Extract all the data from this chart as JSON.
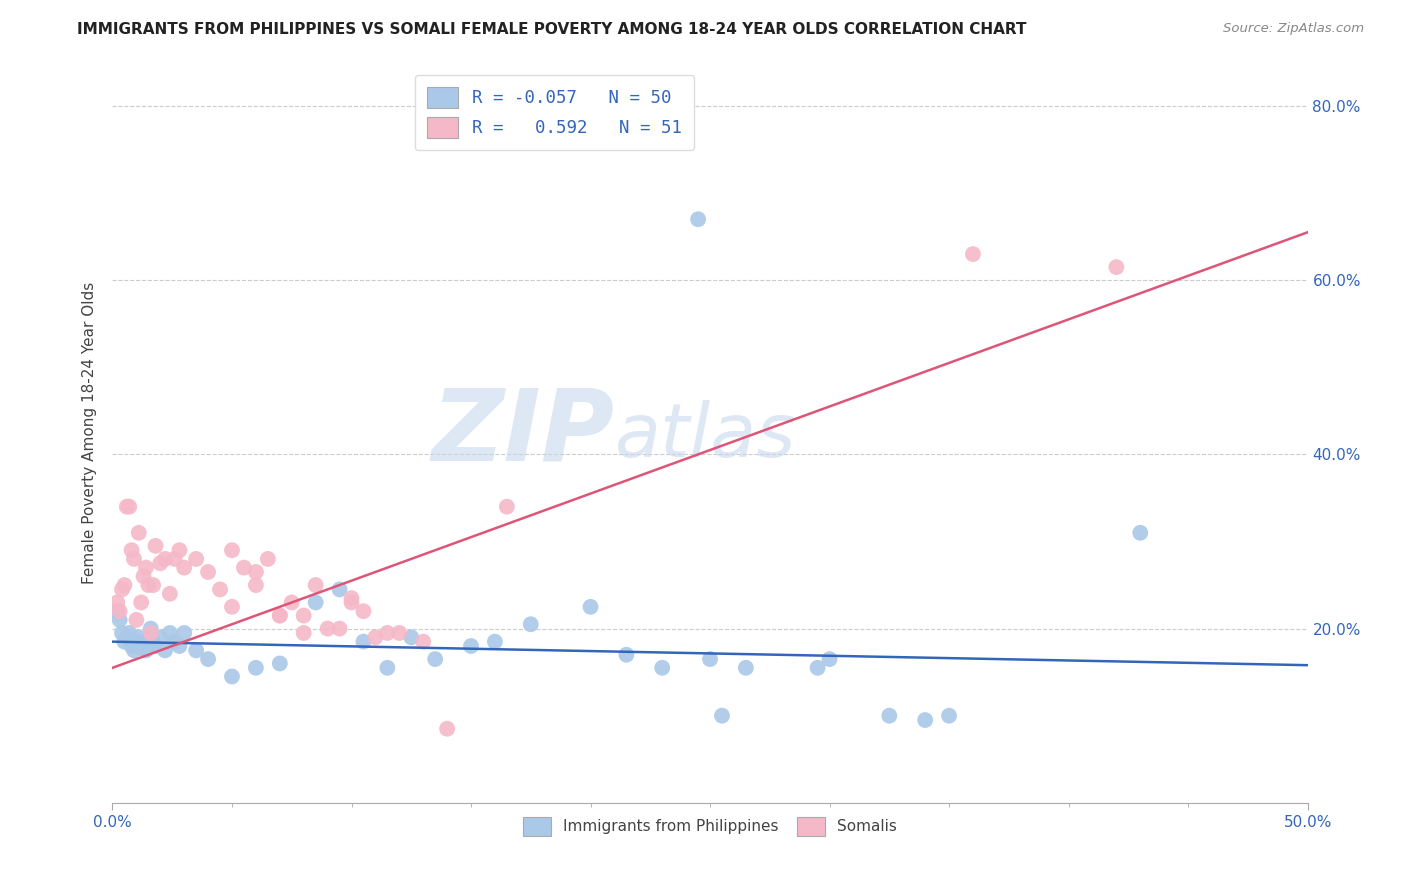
{
  "title": "IMMIGRANTS FROM PHILIPPINES VS SOMALI FEMALE POVERTY AMONG 18-24 YEAR OLDS CORRELATION CHART",
  "source": "Source: ZipAtlas.com",
  "ylabel": "Female Poverty Among 18-24 Year Olds",
  "xlim": [
    0.0,
    0.5
  ],
  "ylim": [
    0.0,
    0.85
  ],
  "yticks": [
    0.0,
    0.2,
    0.4,
    0.6,
    0.8
  ],
  "blue_R": -0.057,
  "blue_N": 50,
  "pink_R": 0.592,
  "pink_N": 51,
  "blue_color": "#aac8e8",
  "pink_color": "#f5b8c8",
  "blue_line_color": "#3366bb",
  "pink_line_color": "#dd5577",
  "legend_label_blue": "Immigrants from Philippines",
  "legend_label_pink": "Somalis",
  "watermark_zip": "ZIP",
  "watermark_atlas": "atlas",
  "background_color": "#ffffff",
  "blue_line_x0": 0.0,
  "blue_line_y0": 0.185,
  "blue_line_x1": 0.5,
  "blue_line_y1": 0.158,
  "pink_line_x0": 0.0,
  "pink_line_y0": 0.155,
  "pink_line_x1": 0.5,
  "pink_line_y1": 0.655,
  "blue_x": [
    0.002,
    0.003,
    0.004,
    0.005,
    0.006,
    0.007,
    0.008,
    0.009,
    0.01,
    0.011,
    0.012,
    0.013,
    0.014,
    0.015,
    0.016,
    0.017,
    0.018,
    0.02,
    0.022,
    0.024,
    0.026,
    0.028,
    0.03,
    0.035,
    0.04,
    0.05,
    0.06,
    0.07,
    0.085,
    0.095,
    0.105,
    0.115,
    0.125,
    0.135,
    0.15,
    0.16,
    0.175,
    0.2,
    0.215,
    0.23,
    0.25,
    0.265,
    0.295,
    0.3,
    0.325,
    0.34,
    0.245,
    0.255,
    0.35,
    0.43
  ],
  "blue_y": [
    0.22,
    0.21,
    0.195,
    0.185,
    0.19,
    0.195,
    0.18,
    0.175,
    0.185,
    0.19,
    0.178,
    0.182,
    0.175,
    0.188,
    0.2,
    0.185,
    0.18,
    0.19,
    0.175,
    0.195,
    0.185,
    0.18,
    0.195,
    0.175,
    0.165,
    0.145,
    0.155,
    0.16,
    0.23,
    0.245,
    0.185,
    0.155,
    0.19,
    0.165,
    0.18,
    0.185,
    0.205,
    0.225,
    0.17,
    0.155,
    0.165,
    0.155,
    0.155,
    0.165,
    0.1,
    0.095,
    0.67,
    0.1,
    0.1,
    0.31
  ],
  "pink_x": [
    0.002,
    0.003,
    0.004,
    0.005,
    0.006,
    0.007,
    0.008,
    0.009,
    0.01,
    0.011,
    0.012,
    0.013,
    0.014,
    0.015,
    0.016,
    0.017,
    0.018,
    0.02,
    0.022,
    0.024,
    0.026,
    0.028,
    0.03,
    0.035,
    0.04,
    0.045,
    0.05,
    0.055,
    0.06,
    0.065,
    0.07,
    0.075,
    0.08,
    0.085,
    0.09,
    0.095,
    0.1,
    0.105,
    0.11,
    0.115,
    0.12,
    0.13,
    0.14,
    0.05,
    0.06,
    0.07,
    0.08,
    0.1,
    0.36,
    0.42,
    0.165
  ],
  "pink_y": [
    0.23,
    0.22,
    0.245,
    0.25,
    0.34,
    0.34,
    0.29,
    0.28,
    0.21,
    0.31,
    0.23,
    0.26,
    0.27,
    0.25,
    0.195,
    0.25,
    0.295,
    0.275,
    0.28,
    0.24,
    0.28,
    0.29,
    0.27,
    0.28,
    0.265,
    0.245,
    0.225,
    0.27,
    0.25,
    0.28,
    0.215,
    0.23,
    0.215,
    0.25,
    0.2,
    0.2,
    0.235,
    0.22,
    0.19,
    0.195,
    0.195,
    0.185,
    0.085,
    0.29,
    0.265,
    0.215,
    0.195,
    0.23,
    0.63,
    0.615,
    0.34
  ]
}
